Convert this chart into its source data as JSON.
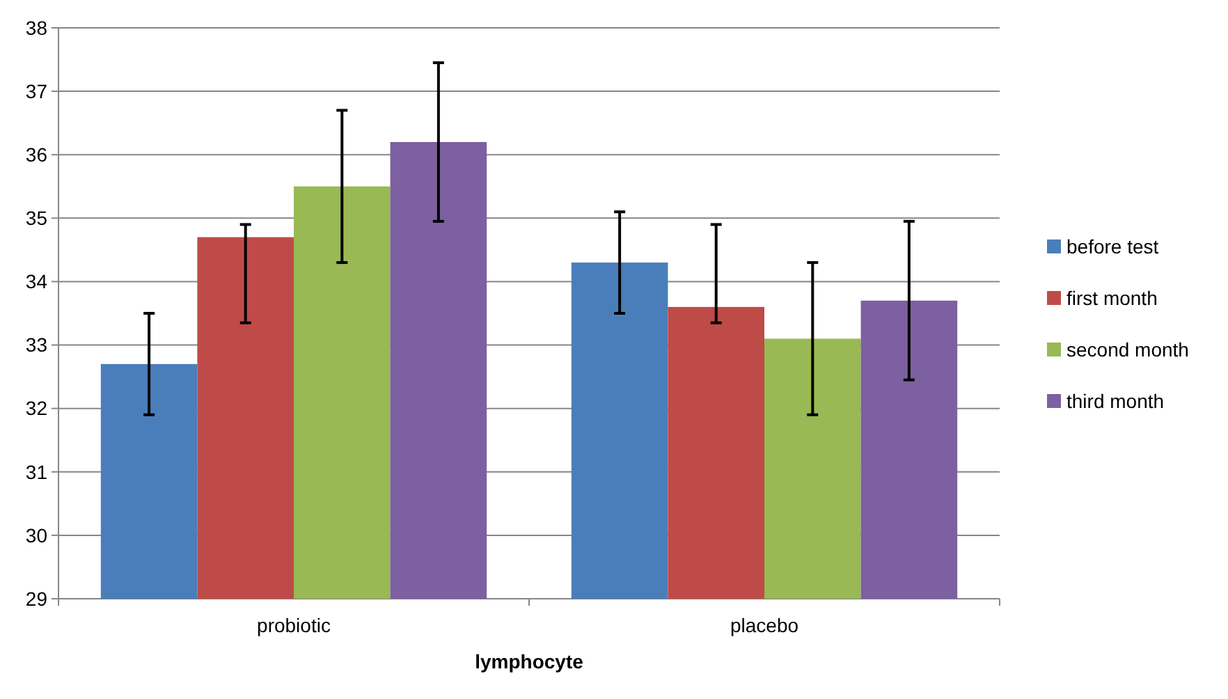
{
  "chart_data": {
    "type": "bar",
    "xlabel": "lymphocyte",
    "categories": [
      "probiotic",
      "placebo"
    ],
    "series": [
      {
        "name": "before test",
        "color": "#4a7ebb",
        "values": [
          32.7,
          34.3
        ],
        "errors": [
          [
            31.9,
            33.5
          ],
          [
            33.5,
            35.1
          ]
        ]
      },
      {
        "name": "first month",
        "color": "#be4b48",
        "values": [
          34.7,
          33.6
        ],
        "errors": [
          [
            33.35,
            34.9
          ],
          [
            33.35,
            34.9
          ]
        ]
      },
      {
        "name": "second month",
        "color": "#98b954",
        "values": [
          35.5,
          33.1
        ],
        "errors": [
          [
            34.3,
            36.7
          ],
          [
            31.9,
            34.3
          ]
        ]
      },
      {
        "name": "third month",
        "color": "#7d60a0",
        "values": [
          36.2,
          33.7
        ],
        "errors": [
          [
            34.95,
            37.45
          ],
          [
            32.45,
            34.95
          ]
        ]
      }
    ],
    "ylim": [
      29,
      38
    ],
    "yticks": [
      29,
      30,
      31,
      32,
      33,
      34,
      35,
      36,
      37,
      38
    ],
    "grid": "y",
    "legend": "right"
  }
}
